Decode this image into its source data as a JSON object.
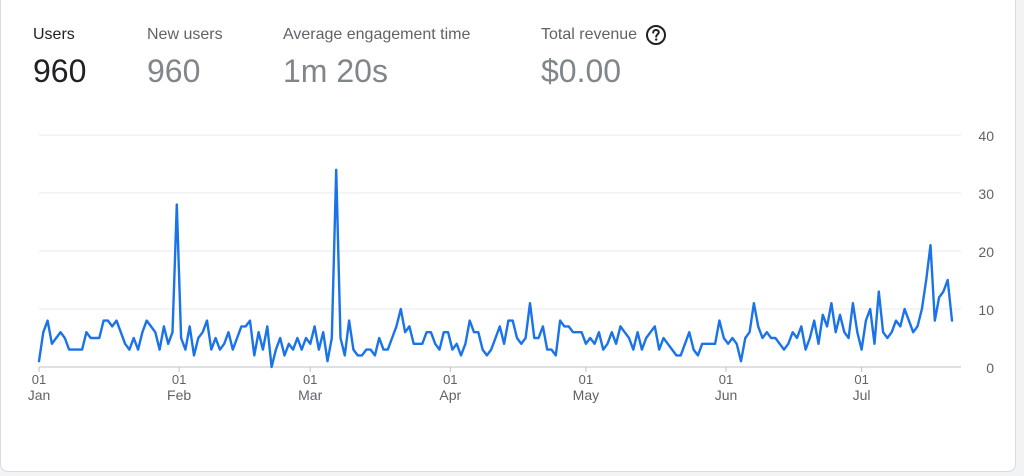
{
  "metrics": [
    {
      "label": "Users",
      "value": "960"
    },
    {
      "label": "New users",
      "value": "960"
    },
    {
      "label": "Average engagement time",
      "value": "1m 20s"
    },
    {
      "label": "Total revenue",
      "value": "$0.00"
    }
  ],
  "help_icon": "help-circle-icon",
  "colors": {
    "line": "#1a73e8",
    "grid": "#e8eaed",
    "axis_text": "#5f6368",
    "active_tab": "#1a73e8"
  },
  "chart_data": {
    "type": "line",
    "x_start": "2024-01-01",
    "x_end": "2024-07-21",
    "ylim": [
      0,
      40
    ],
    "y_ticks": [
      "0",
      "10",
      "20",
      "30",
      "40"
    ],
    "x_ticks": [
      {
        "date": "2024-01-01",
        "day": "01",
        "month": "Jan"
      },
      {
        "date": "2024-02-01",
        "day": "01",
        "month": "Feb"
      },
      {
        "date": "2024-03-01",
        "day": "01",
        "month": "Mar"
      },
      {
        "date": "2024-04-01",
        "day": "01",
        "month": "Apr"
      },
      {
        "date": "2024-05-01",
        "day": "01",
        "month": "May"
      },
      {
        "date": "2024-06-01",
        "day": "01",
        "month": "Jun"
      },
      {
        "date": "2024-07-01",
        "day": "01",
        "month": "Jul"
      }
    ],
    "grid": true,
    "series": [
      {
        "values": [
          1,
          6,
          8,
          4,
          5,
          6,
          5,
          3,
          3,
          3,
          3,
          6,
          5,
          5,
          5,
          8,
          8,
          7,
          8,
          6,
          4,
          3,
          5,
          3,
          6,
          8,
          7,
          6,
          3,
          7,
          4,
          6,
          28,
          5,
          3,
          7,
          2,
          5,
          6,
          8,
          3,
          5,
          3,
          4,
          6,
          3,
          5,
          7,
          7,
          8,
          2,
          6,
          3,
          7,
          0,
          3,
          5,
          2,
          4,
          3,
          5,
          3,
          5,
          4,
          7,
          3,
          6,
          1,
          5,
          34,
          5,
          2,
          8,
          3,
          2,
          2,
          3,
          3,
          2,
          5,
          3,
          3,
          5,
          7,
          10,
          6,
          7,
          4,
          4,
          4,
          6,
          6,
          4,
          3,
          6,
          6,
          3,
          4,
          2,
          4,
          8,
          6,
          6,
          3,
          2,
          3,
          5,
          7,
          4,
          8,
          8,
          5,
          4,
          5,
          11,
          5,
          5,
          7,
          3,
          3,
          2,
          8,
          7,
          7,
          6,
          6,
          6,
          4,
          5,
          4,
          6,
          3,
          4,
          6,
          4,
          7,
          6,
          5,
          3,
          6,
          3,
          5,
          6,
          7,
          3,
          5,
          4,
          3,
          2,
          2,
          4,
          6,
          3,
          2,
          4,
          4,
          4,
          4,
          8,
          5,
          4,
          5,
          4,
          1,
          5,
          6,
          11,
          7,
          5,
          6,
          5,
          5,
          4,
          3,
          4,
          6,
          5,
          7,
          3,
          5,
          8,
          4,
          9,
          7,
          11,
          6,
          9,
          6,
          5,
          11,
          6,
          3,
          8,
          10,
          4,
          13,
          6,
          5,
          6,
          8,
          7,
          10,
          8,
          6,
          7,
          10,
          15,
          21,
          8,
          12,
          13,
          15,
          8
        ]
      }
    ]
  }
}
